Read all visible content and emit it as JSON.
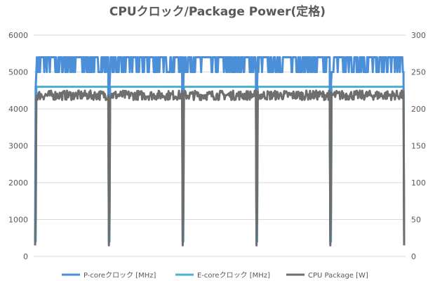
{
  "chart_data": {
    "type": "line",
    "title": "CPUクロック/Package Power(定格)",
    "xlabel": "",
    "ylabel": "",
    "y_left": {
      "lim": [
        0,
        6000
      ],
      "ticks": [
        0,
        1000,
        2000,
        3000,
        4000,
        5000,
        6000
      ]
    },
    "y_right": {
      "lim": [
        0,
        300
      ],
      "ticks": [
        0,
        50,
        100,
        150,
        200,
        250,
        300
      ]
    },
    "grid": true,
    "legend_position": "bottom",
    "cycles": 5,
    "samples_per_cycle": 120,
    "series": [
      {
        "name": "P-coreクロック [MHz]",
        "axis": "left",
        "color": "#4a8fd8",
        "steady_values": [
          5400,
          5000
        ],
        "idle_value": 4600
      },
      {
        "name": "E-coreクロック [MHz]",
        "axis": "left",
        "color": "#4ab3d6",
        "steady_values": [
          4600
        ],
        "idle_value": 400
      },
      {
        "name": "CPU Package [W]",
        "axis": "right",
        "color": "#6e6e6e",
        "steady_values": [
          212,
          225
        ],
        "idle_value": 15
      }
    ]
  }
}
